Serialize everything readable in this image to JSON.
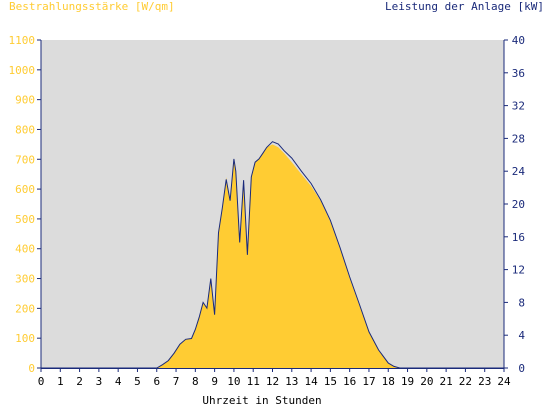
{
  "chart_data": {
    "type": "area",
    "left_axis_label": "Bestrahlungsstärke [W/qm]",
    "right_axis_label": "Leistung der Anlage [kW]",
    "xlabel": "Uhrzeit in Stunden",
    "x_ticks": [
      "0",
      "1",
      "2",
      "3",
      "4",
      "5",
      "6",
      "7",
      "8",
      "9",
      "10",
      "11",
      "12",
      "13",
      "14",
      "15",
      "16",
      "17",
      "18",
      "19",
      "20",
      "21",
      "22",
      "23",
      "24"
    ],
    "y_left_ticks": [
      "0",
      "100",
      "200",
      "300",
      "400",
      "500",
      "600",
      "700",
      "800",
      "900",
      "1000",
      "1100"
    ],
    "y_right_ticks": [
      "0",
      "4",
      "8",
      "12",
      "16",
      "20",
      "24",
      "28",
      "32",
      "36",
      "40"
    ],
    "xlim": [
      0,
      24
    ],
    "ylim_left": [
      0,
      1100
    ],
    "ylim_right": [
      0,
      40
    ],
    "grid": false,
    "colors": {
      "plot_background": "#dcdcdc",
      "irradiance_fill": "#ffcc33",
      "power_line": "#1a2a7a",
      "left_axis_text": "#ffcc33",
      "right_axis_text": "#1a2a7a",
      "x_axis_text": "#000000",
      "axis_line": "#1a2a7a"
    },
    "series": [
      {
        "axis": "left",
        "style": "area",
        "x": [
          0,
          6.0,
          6.3,
          6.6,
          6.9,
          7.2,
          7.5,
          7.8,
          8.0,
          8.2,
          8.4,
          8.6,
          8.8,
          9.0,
          9.2,
          9.4,
          9.6,
          9.8,
          10.0,
          10.1,
          10.3,
          10.5,
          10.7,
          10.9,
          11.1,
          11.3,
          11.5,
          11.7,
          12.0,
          12.3,
          12.6,
          13.0,
          13.5,
          14.0,
          14.5,
          15.0,
          15.5,
          16.0,
          16.5,
          17.0,
          17.5,
          18.0,
          18.3,
          18.6,
          18.8,
          19.0,
          24
        ],
        "y": [
          0,
          0,
          10,
          25,
          50,
          80,
          95,
          100,
          130,
          170,
          220,
          200,
          300,
          180,
          450,
          530,
          640,
          560,
          700,
          660,
          420,
          630,
          380,
          640,
          690,
          700,
          720,
          740,
          750,
          740,
          720,
          690,
          650,
          610,
          560,
          490,
          400,
          300,
          210,
          120,
          60,
          15,
          5,
          0,
          0,
          0,
          0
        ]
      },
      {
        "axis": "right",
        "style": "line",
        "x": [
          0,
          6.0,
          6.3,
          6.6,
          6.9,
          7.2,
          7.5,
          7.8,
          8.0,
          8.2,
          8.4,
          8.6,
          8.8,
          9.0,
          9.2,
          9.4,
          9.6,
          9.8,
          10.0,
          10.1,
          10.3,
          10.5,
          10.7,
          10.9,
          11.1,
          11.3,
          11.5,
          11.7,
          12.0,
          12.3,
          12.6,
          13.0,
          13.5,
          14.0,
          14.5,
          15.0,
          15.5,
          16.0,
          16.5,
          17.0,
          17.5,
          18.0,
          18.3,
          18.6,
          18.8,
          19.0,
          24
        ],
        "y": [
          0,
          0,
          0.4,
          0.9,
          1.8,
          2.9,
          3.5,
          3.6,
          4.7,
          6.2,
          8.0,
          7.3,
          10.9,
          6.5,
          16.5,
          19.5,
          23.0,
          20.4,
          25.5,
          24.0,
          15.3,
          22.9,
          13.8,
          23.3,
          25.1,
          25.5,
          26.2,
          26.9,
          27.6,
          27.3,
          26.5,
          25.6,
          24.0,
          22.5,
          20.5,
          18.0,
          14.7,
          11.1,
          7.8,
          4.4,
          2.2,
          0.6,
          0.2,
          0,
          0,
          0,
          0
        ]
      }
    ]
  }
}
